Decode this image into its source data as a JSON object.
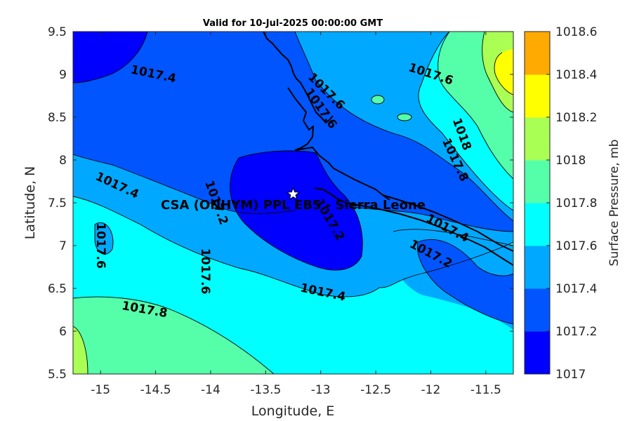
{
  "title": "Valid for 10-Jul-2025 00:00:00 GMT",
  "colors": {
    "levels": [
      "#0000ff",
      "#0055ff",
      "#00a9ff",
      "#00ffff",
      "#55ffaa",
      "#aaff55",
      "#ffff00",
      "#ffaa00",
      "#ff5500"
    ]
  },
  "chart_data": {
    "type": "filled-contour map",
    "xlabel": "Longitude, E",
    "ylabel": "Latitude, N",
    "xlim": [
      -15.25,
      -11.25
    ],
    "ylim": [
      5.5,
      9.5
    ],
    "xticks": [
      "-15",
      "-14.5",
      "-14",
      "-13.5",
      "-13",
      "-12.5",
      "-12",
      "-11.5"
    ],
    "yticks": [
      "5.5",
      "6",
      "6.5",
      "7",
      "7.5",
      "8",
      "8.5",
      "9",
      "9.5"
    ],
    "colorbar": {
      "label": "Surface Pressure, mb",
      "levels": [
        1017,
        1017.2,
        1017.4,
        1017.6,
        1017.8,
        1018,
        1018.2,
        1018.4,
        1018.6
      ],
      "tick_labels": [
        "1017",
        "1017.2",
        "1017.4",
        "1017.6",
        "1017.8",
        "1018",
        "1018.2",
        "1018.4",
        "1018.6"
      ]
    },
    "contour_labels": [
      {
        "text": "1017.4",
        "lon": -14.52,
        "lat": 9.0
      },
      {
        "text": "1017.6",
        "lon": -12.0,
        "lat": 9.0
      },
      {
        "text": "1017.6",
        "lon": -12.95,
        "lat": 8.8
      },
      {
        "text": "1017.6",
        "lon": -13.0,
        "lat": 8.6
      },
      {
        "text": "1018",
        "lon": -11.72,
        "lat": 8.3
      },
      {
        "text": "1017.8",
        "lon": -11.78,
        "lat": 8.0
      },
      {
        "text": "1017.4",
        "lon": -14.85,
        "lat": 7.7
      },
      {
        "text": "1017.2",
        "lon": -13.95,
        "lat": 7.5
      },
      {
        "text": "1017.2",
        "lon": -12.92,
        "lat": 7.3
      },
      {
        "text": "1017.4",
        "lon": -11.85,
        "lat": 7.2
      },
      {
        "text": "1017.2",
        "lon": -12.0,
        "lat": 6.9
      },
      {
        "text": "1017.6",
        "lon": -15.0,
        "lat": 7.0
      },
      {
        "text": "1017.6",
        "lon": -14.05,
        "lat": 6.7
      },
      {
        "text": "1017.4",
        "lon": -12.98,
        "lat": 6.45
      },
      {
        "text": "1017.8",
        "lon": -14.6,
        "lat": 6.25
      }
    ],
    "site": {
      "label": "CSA (ONHYM) PPL EB5  - Sierra Leone",
      "lon": -13.25,
      "lat": 7.6
    }
  }
}
